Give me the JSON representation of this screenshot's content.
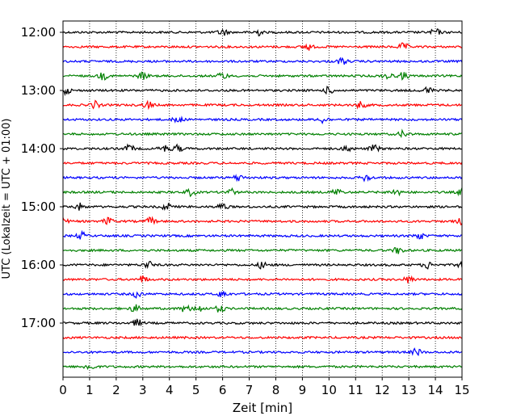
{
  "chart_data": {
    "type": "line",
    "title": "",
    "xlabel": "Zeit  [min]",
    "ylabel": "UTC (Lokalzeit = UTC + 01:00)",
    "xlim": [
      0,
      15
    ],
    "x_ticks": [
      "0",
      "1",
      "2",
      "3",
      "4",
      "5",
      "6",
      "7",
      "8",
      "9",
      "10",
      "11",
      "12",
      "13",
      "14",
      "15"
    ],
    "y_ticks": [
      "12:00",
      "13:00",
      "14:00",
      "15:00",
      "16:00",
      "17:00"
    ],
    "trace_interval_minutes": 15,
    "trace_start": "12:00",
    "trace_count": 24,
    "vertical_grid": "dotted",
    "color_cycle": [
      "#000000",
      "#ff0000",
      "#0000ff",
      "#008000"
    ],
    "bursts": [
      {
        "trace": "12:00",
        "at_min": [
          6.0,
          7.3,
          14.0
        ]
      },
      {
        "trace": "12:15",
        "at_min": [
          9.2,
          12.8
        ]
      },
      {
        "trace": "12:30",
        "at_min": [
          10.5
        ]
      },
      {
        "trace": "12:45",
        "at_min": [
          1.5,
          3.0,
          6.0,
          12.2,
          12.8
        ]
      },
      {
        "trace": "13:00",
        "at_min": [
          0.1,
          10.0,
          13.7
        ]
      },
      {
        "trace": "13:15",
        "at_min": [
          1.2,
          3.2,
          11.2
        ]
      },
      {
        "trace": "13:30",
        "at_min": [
          4.3,
          9.8
        ]
      },
      {
        "trace": "13:45",
        "at_min": [
          12.8
        ]
      },
      {
        "trace": "14:00",
        "at_min": [
          2.5,
          3.8,
          4.3,
          10.7,
          11.7
        ]
      },
      {
        "trace": "14:15",
        "at_min": []
      },
      {
        "trace": "14:30",
        "at_min": [
          6.6,
          11.4
        ]
      },
      {
        "trace": "14:45",
        "at_min": [
          4.8,
          6.3,
          10.3,
          12.5,
          15.0
        ]
      },
      {
        "trace": "15:00",
        "at_min": [
          0.6,
          3.9,
          6.0
        ]
      },
      {
        "trace": "15:15",
        "at_min": [
          0.0,
          1.7,
          3.3,
          15.0
        ]
      },
      {
        "trace": "15:30",
        "at_min": [
          0.7,
          13.4
        ]
      },
      {
        "trace": "15:45",
        "at_min": [
          12.6
        ]
      },
      {
        "trace": "16:00",
        "at_min": [
          3.2,
          7.5,
          13.7,
          15.0
        ]
      },
      {
        "trace": "16:15",
        "at_min": [
          3.0,
          13.0
        ]
      },
      {
        "trace": "16:30",
        "at_min": [
          2.8,
          6.0
        ]
      },
      {
        "trace": "16:45",
        "at_min": [
          2.7,
          4.6,
          5.1,
          5.9
        ]
      },
      {
        "trace": "17:00",
        "at_min": [
          2.8
        ]
      },
      {
        "trace": "17:15",
        "at_min": []
      },
      {
        "trace": "17:30",
        "at_min": [
          13.3
        ]
      },
      {
        "trace": "17:45",
        "at_min": [
          1.0
        ]
      }
    ]
  }
}
